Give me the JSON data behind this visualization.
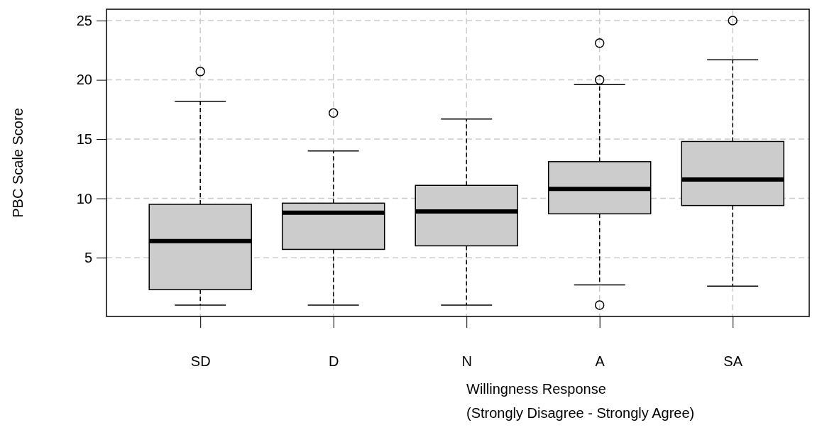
{
  "chart_data": {
    "type": "box",
    "ylabel": "PBC Scale Score",
    "xlabel": "Willingness Response\n(Strongly Disagree - Strongly Agree)",
    "categories": [
      "SD",
      "D",
      "N",
      "A",
      "SA"
    ],
    "color": "#cccccc",
    "ylim": [
      0.04,
      25.96
    ],
    "yticks": [
      5,
      10,
      15,
      20,
      25
    ],
    "grid": true,
    "boxes": [
      {
        "low": 1,
        "q1": 2.3,
        "median": 6.4,
        "q3": 9.5,
        "high": 18.2,
        "outliers": [
          20.7
        ]
      },
      {
        "low": 1,
        "q1": 5.7,
        "median": 8.8,
        "q3": 9.6,
        "high": 14,
        "outliers": [
          17.2
        ]
      },
      {
        "low": 1,
        "q1": 6,
        "median": 8.9,
        "q3": 11.1,
        "high": 16.7
      },
      {
        "low": 2.7,
        "q1": 8.7,
        "median": 10.8,
        "q3": 13.1,
        "high": 19.6,
        "outliers": [
          1,
          20,
          23.1
        ]
      },
      {
        "low": 2.6,
        "q1": 9.4,
        "median": 11.6,
        "q3": 14.8,
        "high": 21.7,
        "outliers": [
          25
        ]
      }
    ]
  }
}
